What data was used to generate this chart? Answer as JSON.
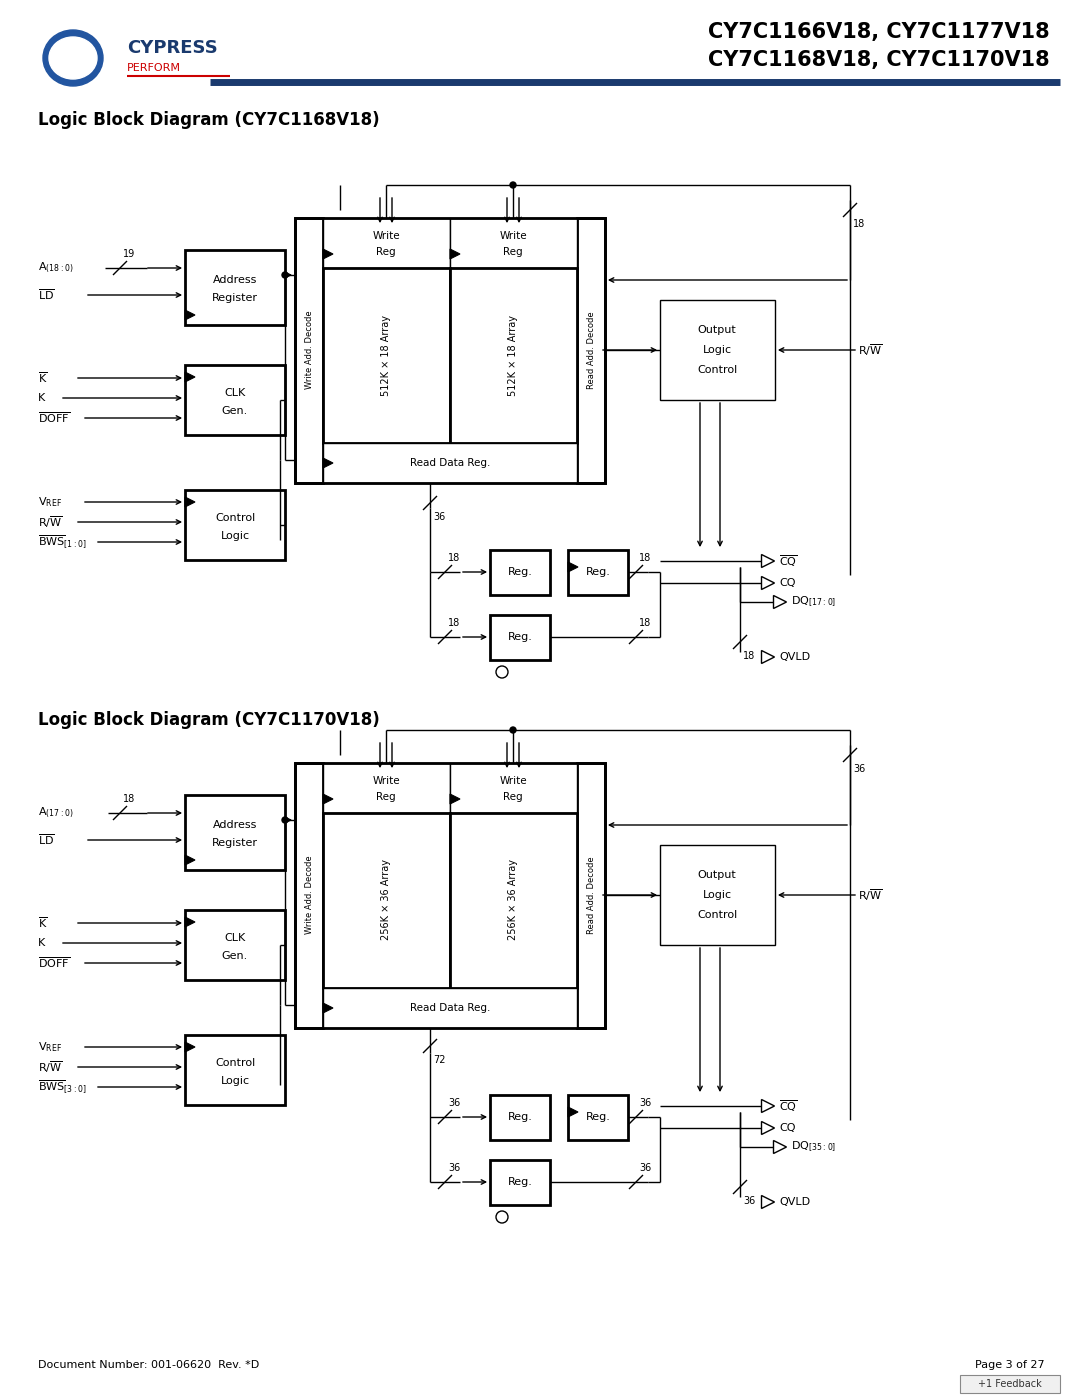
{
  "title1": "CY7C1166V18, CY7C1177V18",
  "title2": "CY7C1168V18, CY7C1170V18",
  "diagram1_title": "Logic Block Diagram (CY7C1168V18)",
  "diagram2_title": "Logic Block Diagram (CY7C1170V18)",
  "doc_number": "Document Number: 001-06620  Rev. *D",
  "page": "Page 3 of 27",
  "bg_color": "#ffffff",
  "header_line_color": "#1a3a6e"
}
